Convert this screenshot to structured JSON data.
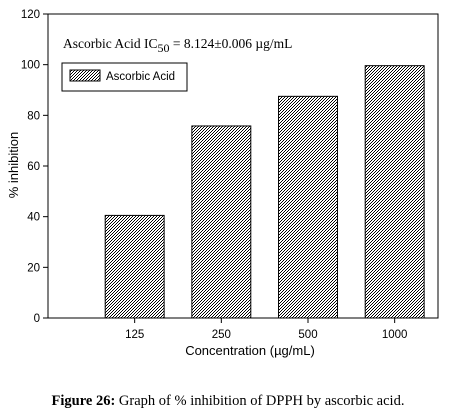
{
  "chart_data": {
    "type": "bar",
    "categories": [
      "125",
      "250",
      "500",
      "1000"
    ],
    "series": [
      {
        "name": "Ascorbic Acid",
        "values": [
          40.5,
          75.8,
          87.5,
          99.6
        ]
      }
    ],
    "xlabel": "Concentration (µg/mL)",
    "ylabel": "% inhibition",
    "ylim": [
      0,
      120
    ],
    "yticks": [
      0,
      20,
      40,
      60,
      80,
      100,
      120
    ],
    "grid": false,
    "legend_position": "top-left",
    "annotation": {
      "prefix": "Ascorbic Acid IC",
      "subscript": "50",
      "suffix": " = 8.124±0.006 µg/mL"
    }
  },
  "caption": {
    "label": "Figure 26:",
    "text": " Graph of % inhibition of DPPH by ascorbic acid."
  }
}
